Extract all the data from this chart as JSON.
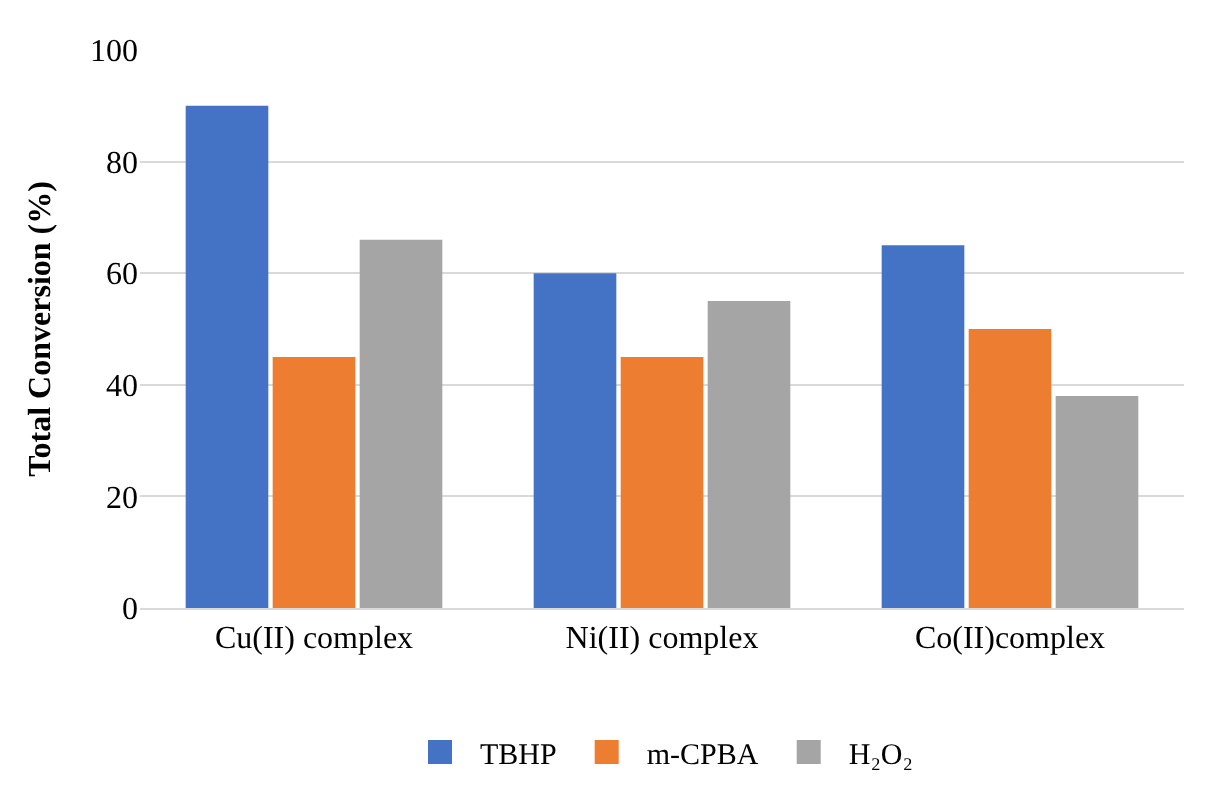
{
  "chart_data": {
    "type": "bar",
    "ylabel": "Total Conversion (%)",
    "categories": [
      "Cu(II) complex",
      "Ni(II) complex",
      "Co(II)complex"
    ],
    "series": [
      {
        "name": "TBHP",
        "color": "#4472c4",
        "values": [
          90,
          60,
          65
        ]
      },
      {
        "name": "m-CPBA",
        "color": "#ed7d31",
        "values": [
          45,
          45,
          50
        ]
      },
      {
        "name": "H₂O₂",
        "color": "#a5a5a5",
        "values": [
          66,
          55,
          38
        ]
      }
    ],
    "ylim": [
      0,
      100
    ],
    "yticks": [
      0,
      20,
      40,
      60,
      80,
      100
    ],
    "grid": "y",
    "legend": "bottom"
  }
}
